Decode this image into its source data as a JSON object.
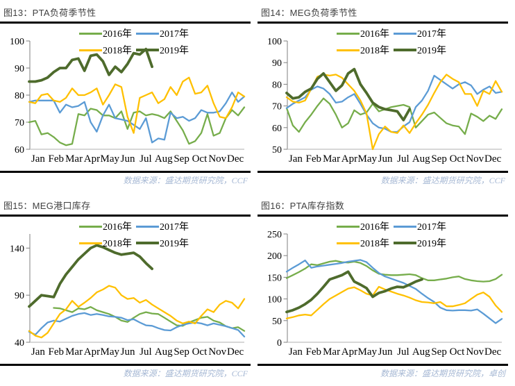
{
  "accent_colors": {
    "y2016": "#76AD4B",
    "y2017": "#5B9BD5",
    "y2018": "#FFC000",
    "y2019": "#4E6B2C",
    "title_text": "#3F3F3F",
    "rule": "#000000",
    "source_text": "#A6B8D4",
    "y_axis": "#7F7F7F",
    "x_axis": "#BFBFBF"
  },
  "chart_data": [
    {
      "type": "line",
      "title": "图13：PTA负荷季节性",
      "source": "数据来源：盛达期货研究院，CCF",
      "x_months": [
        "Jan",
        "Feb",
        "Mar",
        "Apr",
        "May",
        "Jun",
        "Jul",
        "Aug",
        "Sep",
        "Oct",
        "Nov",
        "Dec"
      ],
      "points_per_month": 3,
      "ylim": [
        60,
        100
      ],
      "yticks": [
        60,
        70,
        80,
        90,
        100
      ],
      "grid": false,
      "legend_position": "top-inside",
      "series": [
        {
          "name": "2016年",
          "color": "#76AD4B",
          "width": 2.3,
          "values": [
            70,
            70.5,
            65.5,
            66,
            64.5,
            62.5,
            61.5,
            62,
            73,
            72.5,
            75,
            74.5,
            72.5,
            72.5,
            71.5,
            74,
            67.5,
            73.5,
            74,
            72.5,
            73,
            72.5,
            71.5,
            74,
            70.5,
            67,
            62,
            63,
            66,
            73,
            65,
            66,
            71.5,
            74.5,
            72.5,
            75.5
          ]
        },
        {
          "name": "2017年",
          "color": "#5B9BD5",
          "width": 2.3,
          "values": [
            77.5,
            78,
            78,
            78,
            78,
            73.5,
            76.5,
            75.5,
            76,
            77.5,
            70,
            66.5,
            72.5,
            76.5,
            71.5,
            71,
            70.5,
            69,
            67.5,
            71.5,
            62.5,
            64,
            63.5,
            73.5,
            71.5,
            72,
            70.5,
            71.5,
            74.5,
            73.5,
            73.5,
            74,
            77,
            81,
            77.5,
            79.5
          ]
        },
        {
          "name": "2018年",
          "color": "#FFC000",
          "width": 2.3,
          "values": [
            77.5,
            77,
            80,
            80.5,
            78,
            77.5,
            79,
            82.5,
            80,
            80,
            81,
            82.5,
            76.5,
            80,
            84,
            83,
            72,
            66,
            79,
            80,
            81,
            77,
            78.5,
            83,
            80,
            85,
            86.5,
            80.5,
            81,
            83.5,
            77,
            72,
            71.5,
            75.5,
            81,
            79.5
          ]
        },
        {
          "name": "2019年",
          "color": "#4E6B2C",
          "width": 3.8,
          "values": [
            85,
            85,
            85.5,
            86.5,
            88.5,
            90,
            90,
            93,
            93.5,
            89,
            94.5,
            95,
            92.5,
            87.5,
            90.5,
            88.5,
            91.5,
            95.5,
            95,
            97,
            90.5,
            null,
            null,
            null,
            null,
            null,
            null,
            null,
            null,
            null,
            null,
            null,
            null,
            null,
            null,
            null
          ]
        }
      ]
    },
    {
      "type": "line",
      "title": "图14：MEG负荷季节性",
      "source": "数据来源：盛达期货研究院，CCF",
      "x_months": [
        "Jan",
        "Feb",
        "Mar",
        "Apr",
        "May",
        "Jun",
        "Jul",
        "Aug",
        "Sep",
        "Oct",
        "Nov",
        "Dec"
      ],
      "points_per_month": 3,
      "ylim": [
        50,
        100
      ],
      "yticks": [
        50,
        60,
        70,
        80,
        90,
        100
      ],
      "grid": false,
      "legend_position": "top-inside",
      "series": [
        {
          "name": "2016年",
          "color": "#76AD4B",
          "width": 2.3,
          "values": [
            69,
            61,
            58,
            62.5,
            66,
            70,
            73.5,
            71,
            66,
            60,
            62,
            68,
            66,
            67,
            71,
            67.5,
            68.5,
            69.5,
            70,
            70.5,
            69.5,
            60,
            63,
            66,
            67,
            64.5,
            62,
            61,
            60.5,
            57,
            66.5,
            65,
            63,
            65.5,
            64,
            68.5
          ]
        },
        {
          "name": "2017年",
          "color": "#5B9BD5",
          "width": 2.3,
          "values": [
            69,
            71,
            72.5,
            74,
            77.5,
            79,
            78,
            75.5,
            71.5,
            72,
            74,
            75.5,
            71,
            66,
            62,
            60,
            59.5,
            58,
            58,
            60.5,
            62.5,
            69.5,
            72.5,
            77,
            84,
            82,
            80,
            78,
            80,
            81,
            79.5,
            75.5,
            77.5,
            79,
            76,
            76.5
          ]
        },
        {
          "name": "2018年",
          "color": "#FFC000",
          "width": 2.3,
          "values": [
            74,
            72,
            71.5,
            72.5,
            78,
            83.5,
            84.5,
            84,
            84.5,
            83,
            80,
            77,
            72.5,
            66.5,
            50,
            57,
            60.5,
            58,
            57.5,
            61,
            57.5,
            62,
            66,
            70.5,
            76,
            81,
            84.5,
            82.5,
            81,
            75.5,
            75.5,
            70,
            77,
            75.5,
            81.5,
            76.5
          ]
        },
        {
          "name": "2019年",
          "color": "#4E6B2C",
          "width": 3.8,
          "values": [
            76,
            73.5,
            74,
            76.5,
            78,
            82.5,
            85,
            81,
            77,
            79.5,
            85,
            87,
            80,
            76,
            71.5,
            69.5,
            68.5,
            68,
            67.5,
            63.5,
            68.5,
            null,
            null,
            null,
            null,
            null,
            null,
            null,
            null,
            null,
            null,
            null,
            null,
            null,
            null,
            null
          ]
        }
      ]
    },
    {
      "type": "line",
      "title": "图15：MEG港口库存",
      "source": "数据来源：盛达期货研究院，CCF",
      "x_months": [
        "Jan",
        "Feb",
        "Mar",
        "Apr",
        "May",
        "Jun",
        "Jul",
        "Aug",
        "Sep",
        "Oct",
        "Nov",
        "Dec"
      ],
      "points_per_month": 3,
      "ylim": [
        40,
        155
      ],
      "yticks": [
        40,
        90,
        140
      ],
      "grid": false,
      "legend_position": "top-inside",
      "series": [
        {
          "name": "2016年",
          "color": "#76AD4B",
          "width": 2.3,
          "values": [
            null,
            null,
            null,
            null,
            76.5,
            76,
            74,
            72,
            76,
            75,
            77.5,
            74,
            72,
            70,
            67,
            63,
            61.5,
            66,
            70,
            72,
            70.5,
            70,
            66,
            62,
            58,
            57.5,
            61,
            63.5,
            66,
            67,
            63,
            61,
            57,
            55,
            56,
            52
          ]
        },
        {
          "name": "2017年",
          "color": "#5B9BD5",
          "width": 2.3,
          "values": [
            51,
            48,
            55,
            61,
            63,
            62,
            65,
            68,
            70,
            71,
            69,
            70,
            69,
            67.5,
            67,
            66,
            63.5,
            64.5,
            61,
            58,
            57.5,
            55,
            53,
            52.5,
            56,
            58.5,
            60,
            61,
            60,
            58,
            60,
            58.5,
            57,
            55,
            53,
            46
          ]
        },
        {
          "name": "2018年",
          "color": "#FFC000",
          "width": 2.3,
          "values": [
            52,
            47,
            45,
            50,
            60,
            70,
            75,
            84,
            77.5,
            82,
            87,
            93,
            96,
            100,
            98,
            90,
            86,
            87,
            82,
            85,
            80,
            76,
            72,
            68,
            63,
            60,
            62,
            60,
            68,
            75,
            72,
            80,
            84,
            82,
            76,
            86
          ]
        },
        {
          "name": "2019年",
          "color": "#4E6B2C",
          "width": 3.8,
          "values": [
            78,
            84,
            90,
            89,
            88,
            102,
            112,
            120,
            128,
            134,
            140,
            143,
            141,
            138,
            135,
            133,
            134,
            135,
            131,
            124,
            118,
            null,
            null,
            null,
            null,
            null,
            null,
            null,
            null,
            null,
            null,
            null,
            null,
            null,
            null,
            null
          ]
        }
      ]
    },
    {
      "type": "line",
      "title": "图16：PTA库存指数",
      "source": "数据来源：盛达期货研究院，卓创",
      "x_months": [
        "Jan",
        "Feb",
        "Mar",
        "Apr",
        "May",
        "Jun",
        "Jul",
        "Aug",
        "Sep",
        "Oct",
        "Nov",
        "Dec"
      ],
      "points_per_month": 3,
      "ylim": [
        0,
        250
      ],
      "yticks": [
        0,
        50,
        100,
        150,
        200,
        250
      ],
      "grid": false,
      "legend_position": "top-inside",
      "series": [
        {
          "name": "2016年",
          "color": "#76AD4B",
          "width": 2.3,
          "values": [
            148,
            155,
            162,
            170,
            180,
            178,
            182,
            186,
            188,
            185,
            184,
            186,
            183,
            176,
            166,
            158,
            156,
            155,
            155,
            156,
            157,
            155,
            148,
            143,
            143,
            145,
            147,
            150,
            152,
            146,
            143,
            141,
            140,
            141,
            146,
            156
          ]
        },
        {
          "name": "2017年",
          "color": "#5B9BD5",
          "width": 2.3,
          "values": [
            163,
            172,
            180,
            189,
            172,
            175,
            177,
            179,
            181,
            183,
            186,
            188,
            190,
            185,
            172,
            160,
            152,
            147,
            142,
            137,
            130,
            123,
            112,
            102,
            93,
            80,
            74,
            73,
            74,
            74,
            73,
            76,
            66,
            55,
            44,
            54
          ]
        },
        {
          "name": "2018年",
          "color": "#FFC000",
          "width": 2.3,
          "values": [
            55,
            58,
            62,
            64,
            62,
            75,
            88,
            100,
            108,
            116,
            124,
            127,
            120,
            112,
            108,
            128,
            122,
            117,
            112,
            108,
            103,
            97,
            93,
            92,
            90,
            93,
            83,
            83,
            86,
            90,
            100,
            110,
            115,
            105,
            85,
            70
          ]
        },
        {
          "name": "2019年",
          "color": "#4E6B2C",
          "width": 3.8,
          "values": [
            70,
            74,
            80,
            88,
            98,
            112,
            128,
            145,
            150,
            155,
            163,
            140,
            133,
            125,
            105,
            114,
            118,
            124,
            128,
            127,
            133,
            140,
            145,
            null,
            null,
            null,
            null,
            null,
            null,
            null,
            null,
            null,
            null,
            null,
            null,
            null
          ]
        }
      ]
    }
  ]
}
